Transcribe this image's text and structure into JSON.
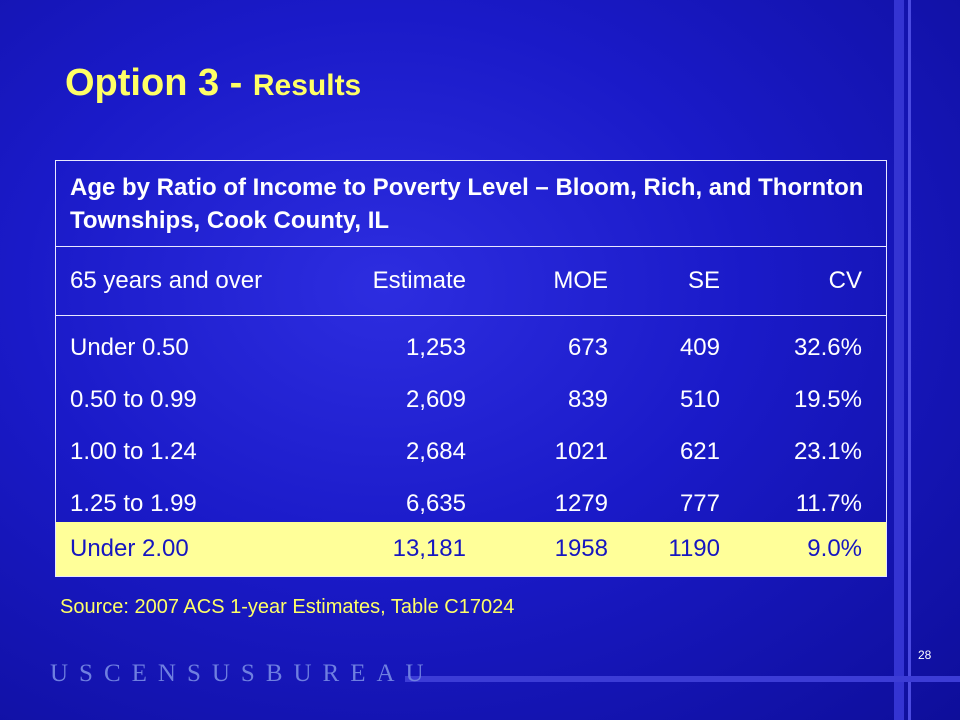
{
  "slide": {
    "title_main": "Option 3 - ",
    "title_sub": "Results",
    "page_number": "28",
    "logo_text": "USCENSUSBUREAU",
    "source": "Source:  2007 ACS 1-year Estimates, Table C17024"
  },
  "table": {
    "caption": "Age by Ratio of Income to Poverty Level – Bloom, Rich, and Thornton Townships, Cook County, IL",
    "headers": [
      "65 years and over",
      "Estimate",
      "MOE",
      "SE",
      "CV"
    ],
    "rows": [
      [
        "Under 0.50",
        "1,253",
        "673",
        "409",
        "32.6%"
      ],
      [
        "0.50 to 0.99",
        "2,609",
        "839",
        "510",
        "19.5%"
      ],
      [
        "1.00 to 1.24",
        "2,684",
        "1021",
        "621",
        "23.1%"
      ],
      [
        "1.25 to 1.99",
        "6,635",
        "1279",
        "777",
        "11.7%"
      ],
      [
        "Under 2.00",
        "13,181",
        "1958",
        "1190",
        "9.0%"
      ]
    ]
  },
  "colors": {
    "background": "#1a1ac8",
    "title": "#ffff66",
    "highlight_row": "#ffff99",
    "highlight_text": "#1616c0"
  }
}
